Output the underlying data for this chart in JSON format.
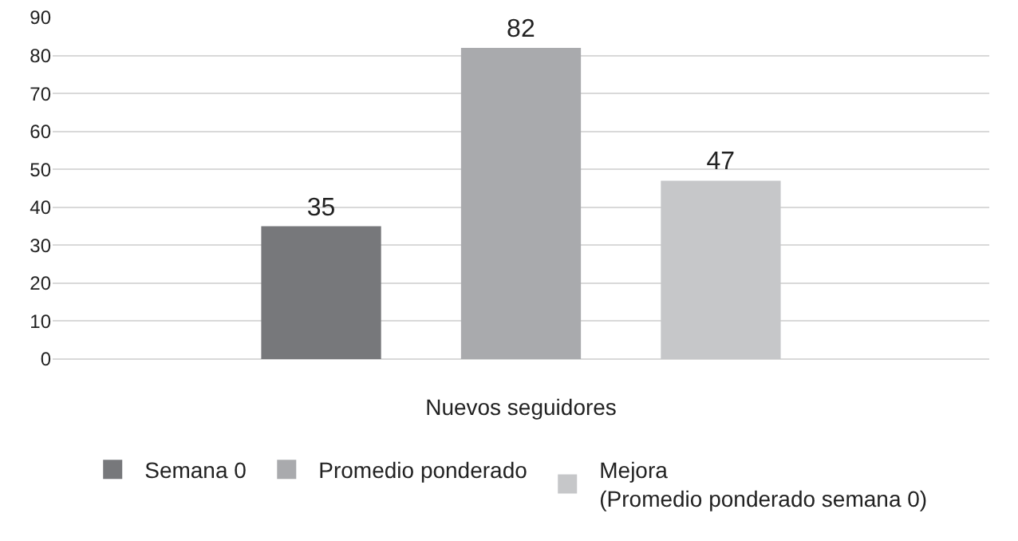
{
  "chart_data": {
    "type": "bar",
    "categories": [
      "Nuevos seguidores"
    ],
    "series": [
      {
        "name": "Semana 0",
        "color": "#77787b",
        "values": [
          35
        ]
      },
      {
        "name": "Promedio ponderado",
        "color": "#a9aaad",
        "values": [
          82
        ]
      },
      {
        "name": "Mejora\n(Promedio ponderado semana 0)",
        "color": "#c6c7c9",
        "values": [
          47
        ]
      }
    ],
    "ylim": [
      0,
      90
    ],
    "yticks": [
      0,
      10,
      20,
      30,
      40,
      50,
      60,
      70,
      80,
      90
    ],
    "grid": "y",
    "legend": "bottom",
    "data_labels": true
  }
}
